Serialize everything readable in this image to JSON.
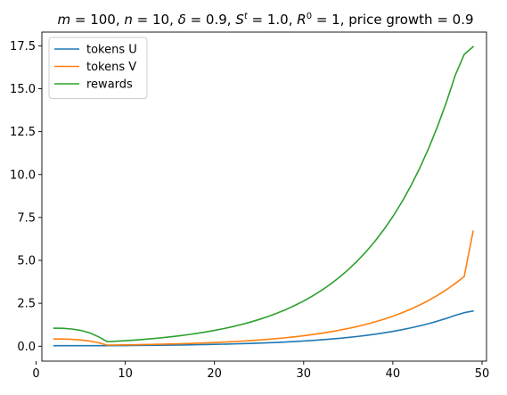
{
  "chart_data": {
    "type": "line",
    "title_parts": {
      "m_sym": "m",
      "m_eq": " = 100, ",
      "n_sym": "n",
      "n_eq": " = 10, ",
      "delta_sym": "δ",
      "delta_eq": " = 0.9, ",
      "s_sym": "S",
      "s_sup": "t",
      "s_eq": " = 1.0, ",
      "r_sym": "R",
      "r_sup": "0",
      "r_eq": " = 1, price growth = 0.9"
    },
    "xlabel": "",
    "ylabel": "",
    "xlim": [
      0.65,
      50.5
    ],
    "ylim": [
      -0.87,
      18.3
    ],
    "xticks": [
      0,
      10,
      20,
      30,
      40,
      50
    ],
    "xtick_labels": [
      "0",
      "10",
      "20",
      "30",
      "40",
      "50"
    ],
    "yticks": [
      0.0,
      2.5,
      5.0,
      7.5,
      10.0,
      12.5,
      15.0,
      17.5
    ],
    "ytick_labels": [
      "0.0",
      "2.5",
      "5.0",
      "7.5",
      "10.0",
      "12.5",
      "15.0",
      "17.5"
    ],
    "grid": false,
    "legend_position": "top-left",
    "series": [
      {
        "name": "tokens U",
        "color": "#1f77b4",
        "points": [
          [
            2,
            0.03
          ],
          [
            3,
            0.03
          ],
          [
            4,
            0.03
          ],
          [
            5,
            0.03
          ],
          [
            6,
            0.03
          ],
          [
            7,
            0.03
          ],
          [
            8,
            0.03
          ],
          [
            9,
            0.033
          ],
          [
            10,
            0.037
          ],
          [
            11,
            0.041
          ],
          [
            12,
            0.046
          ],
          [
            13,
            0.051
          ],
          [
            14,
            0.056
          ],
          [
            15,
            0.062
          ],
          [
            16,
            0.069
          ],
          [
            17,
            0.077
          ],
          [
            18,
            0.085
          ],
          [
            19,
            0.095
          ],
          [
            20,
            0.105
          ],
          [
            21,
            0.117
          ],
          [
            22,
            0.13
          ],
          [
            23,
            0.144
          ],
          [
            24,
            0.16
          ],
          [
            25,
            0.178
          ],
          [
            26,
            0.198
          ],
          [
            27,
            0.22
          ],
          [
            28,
            0.244
          ],
          [
            29,
            0.271
          ],
          [
            30,
            0.301
          ],
          [
            31,
            0.334
          ],
          [
            32,
            0.371
          ],
          [
            33,
            0.412
          ],
          [
            34,
            0.458
          ],
          [
            35,
            0.509
          ],
          [
            36,
            0.566
          ],
          [
            37,
            0.628
          ],
          [
            38,
            0.698
          ],
          [
            39,
            0.776
          ],
          [
            40,
            0.862
          ],
          [
            41,
            0.957
          ],
          [
            42,
            1.064
          ],
          [
            43,
            1.182
          ],
          [
            44,
            1.313
          ],
          [
            45,
            1.459
          ],
          [
            46,
            1.62
          ],
          [
            47,
            1.8
          ],
          [
            48,
            1.95
          ],
          [
            49,
            2.05
          ]
        ]
      },
      {
        "name": "tokens V",
        "color": "#ff7f0e",
        "points": [
          [
            2,
            0.42
          ],
          [
            3,
            0.42
          ],
          [
            4,
            0.4
          ],
          [
            5,
            0.36
          ],
          [
            6,
            0.3
          ],
          [
            7,
            0.2
          ],
          [
            8,
            0.06
          ],
          [
            9,
            0.067
          ],
          [
            10,
            0.074
          ],
          [
            11,
            0.082
          ],
          [
            12,
            0.092
          ],
          [
            13,
            0.102
          ],
          [
            14,
            0.113
          ],
          [
            15,
            0.126
          ],
          [
            16,
            0.14
          ],
          [
            17,
            0.155
          ],
          [
            18,
            0.172
          ],
          [
            19,
            0.191
          ],
          [
            20,
            0.213
          ],
          [
            21,
            0.236
          ],
          [
            22,
            0.262
          ],
          [
            23,
            0.292
          ],
          [
            24,
            0.324
          ],
          [
            25,
            0.36
          ],
          [
            26,
            0.4
          ],
          [
            27,
            0.444
          ],
          [
            28,
            0.494
          ],
          [
            29,
            0.548
          ],
          [
            30,
            0.609
          ],
          [
            31,
            0.677
          ],
          [
            32,
            0.752
          ],
          [
            33,
            0.836
          ],
          [
            34,
            0.929
          ],
          [
            35,
            1.032
          ],
          [
            36,
            1.146
          ],
          [
            37,
            1.274
          ],
          [
            38,
            1.415
          ],
          [
            39,
            1.572
          ],
          [
            40,
            1.747
          ],
          [
            41,
            1.941
          ],
          [
            42,
            2.157
          ],
          [
            43,
            2.396
          ],
          [
            44,
            2.663
          ],
          [
            45,
            2.958
          ],
          [
            46,
            3.287
          ],
          [
            47,
            3.653
          ],
          [
            48,
            4.058
          ],
          [
            49,
            6.7
          ]
        ]
      },
      {
        "name": "rewards",
        "color": "#2ca02c",
        "points": [
          [
            2,
            1.05
          ],
          [
            3,
            1.04
          ],
          [
            4,
            1.0
          ],
          [
            5,
            0.92
          ],
          [
            6,
            0.78
          ],
          [
            7,
            0.55
          ],
          [
            8,
            0.26
          ],
          [
            9,
            0.291
          ],
          [
            10,
            0.321
          ],
          [
            11,
            0.356
          ],
          [
            12,
            0.395
          ],
          [
            13,
            0.439
          ],
          [
            14,
            0.488
          ],
          [
            15,
            0.542
          ],
          [
            16,
            0.602
          ],
          [
            17,
            0.669
          ],
          [
            18,
            0.744
          ],
          [
            19,
            0.826
          ],
          [
            20,
            0.918
          ],
          [
            21,
            1.02
          ],
          [
            22,
            1.133
          ],
          [
            23,
            1.259
          ],
          [
            24,
            1.399
          ],
          [
            25,
            1.555
          ],
          [
            26,
            1.728
          ],
          [
            27,
            1.92
          ],
          [
            28,
            2.133
          ],
          [
            29,
            2.37
          ],
          [
            30,
            2.633
          ],
          [
            31,
            2.926
          ],
          [
            32,
            3.251
          ],
          [
            33,
            3.612
          ],
          [
            34,
            4.013
          ],
          [
            35,
            4.459
          ],
          [
            36,
            4.955
          ],
          [
            37,
            5.505
          ],
          [
            38,
            6.117
          ],
          [
            39,
            6.797
          ],
          [
            40,
            7.552
          ],
          [
            41,
            8.391
          ],
          [
            42,
            9.323
          ],
          [
            43,
            10.359
          ],
          [
            44,
            11.51
          ],
          [
            45,
            12.789
          ],
          [
            46,
            14.21
          ],
          [
            47,
            15.79
          ],
          [
            48,
            17.0
          ],
          [
            49,
            17.45
          ]
        ]
      }
    ]
  }
}
